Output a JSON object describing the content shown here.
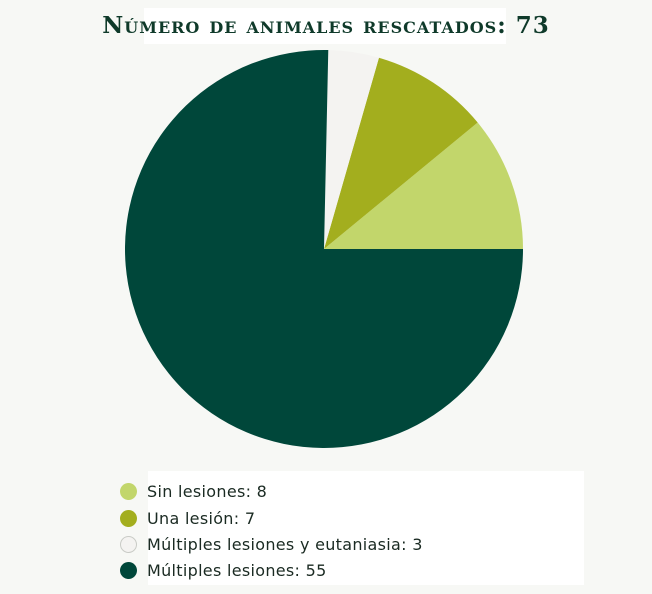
{
  "chart_data": {
    "type": "pie",
    "title": "Número de animales rescatados: 73",
    "categories": [
      "Sin lesiones",
      "Una lesión",
      "Múltiples lesiones y eutaniasia",
      "Múltiples lesiones"
    ],
    "values": [
      8,
      7,
      3,
      55
    ],
    "colors": [
      "#c2d66b",
      "#a3ae1e",
      "#f4f3f1",
      "#00473a"
    ],
    "legend_labels": [
      "Sin lesiones: 8",
      "Una lesión: 7",
      "Múltiples lesiones y eutaniasia: 3",
      "Múltiples lesiones: 55"
    ],
    "legend_position": "bottom"
  }
}
